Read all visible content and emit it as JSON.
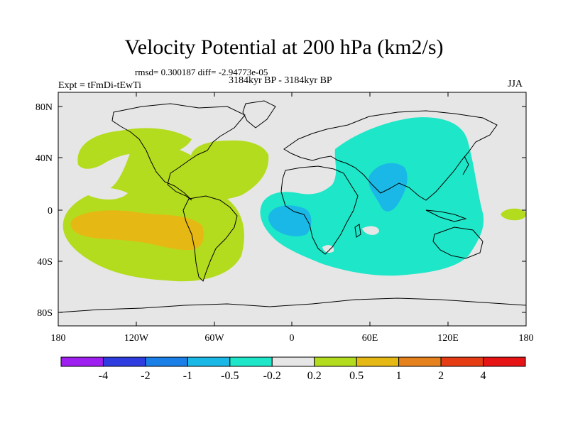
{
  "plot": {
    "title": "Velocity Potential at 200 hPa (km2/s)",
    "stats": "rmsd= 0.300187 diff= -2.94773e-05",
    "left_label": "Expt = tFmDi-tEwTi",
    "center_label": "3184kyr BP - 3184kyr BP",
    "right_label": "JJA"
  },
  "axes": {
    "y_ticks": [
      "80N",
      "40N",
      "0",
      "40S",
      "80S"
    ],
    "x_ticks": [
      "180",
      "120W",
      "60W",
      "0",
      "60E",
      "120E",
      "180"
    ]
  },
  "colorbar": {
    "colors": [
      "#9f1ff0",
      "#2f3ce0",
      "#1a7fe6",
      "#1ab8e6",
      "#1ee6c8",
      "#e6e6e6",
      "#b4dc1e",
      "#e6b814",
      "#e6821e",
      "#e63c14",
      "#e61414"
    ],
    "labels": [
      "-4",
      "-2",
      "-1",
      "-0.5",
      "-0.2",
      "0.2",
      "0.5",
      "1",
      "2",
      "4"
    ]
  },
  "colors": {
    "background": "#e6e6e6",
    "positive_weak": "#b4dc1e",
    "positive_mid": "#e6b814",
    "negative_weak": "#1ee6c8",
    "negative_mid": "#1ab8e6"
  }
}
